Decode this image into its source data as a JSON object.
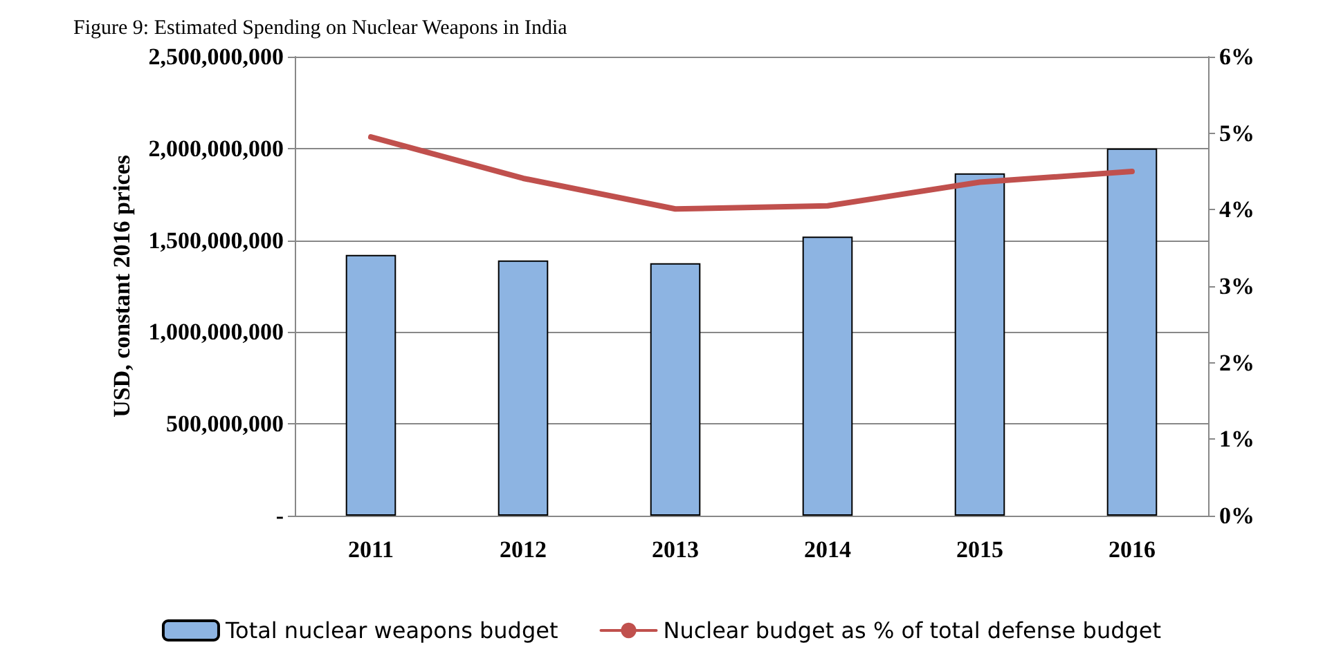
{
  "chart_data": {
    "type": "bar",
    "title": "Figure 9: Estimated Spending on Nuclear Weapons in India",
    "ylabel": "USD, constant 2016 prices",
    "categories": [
      "2011",
      "2012",
      "2013",
      "2014",
      "2015",
      "2016"
    ],
    "series": [
      {
        "name": "Total nuclear weapons budget",
        "color": "#8db4e2",
        "values": [
          1420000000,
          1390000000,
          1375000000,
          1520000000,
          1865000000,
          2000000000
        ]
      },
      {
        "name": "Nuclear budget as % of total defense budget",
        "type": "line",
        "axis": "y2",
        "color": "#c0504d",
        "values": [
          4.95,
          4.41,
          4.01,
          4.05,
          4.36,
          4.5
        ]
      }
    ],
    "ylim": [
      0,
      2500000000
    ],
    "yticks": [
      {
        "value": 0,
        "label": "-"
      },
      {
        "value": 500000000,
        "label": "500,000,000"
      },
      {
        "value": 1000000000,
        "label": "1,000,000,000"
      },
      {
        "value": 1500000000,
        "label": "1,500,000,000"
      },
      {
        "value": 2000000000,
        "label": "2,000,000,000"
      },
      {
        "value": 2500000000,
        "label": "2,500,000,000"
      }
    ],
    "y2lim": [
      0,
      6
    ],
    "y2ticks": [
      {
        "value": 0,
        "label": "0%"
      },
      {
        "value": 1,
        "label": "1%"
      },
      {
        "value": 2,
        "label": "2%"
      },
      {
        "value": 3,
        "label": "3%"
      },
      {
        "value": 4,
        "label": "4%"
      },
      {
        "value": 5,
        "label": "5%"
      },
      {
        "value": 6,
        "label": "6%"
      }
    ],
    "grid": "y",
    "legend": "bottom",
    "marker": "none",
    "line_style": "solid"
  }
}
